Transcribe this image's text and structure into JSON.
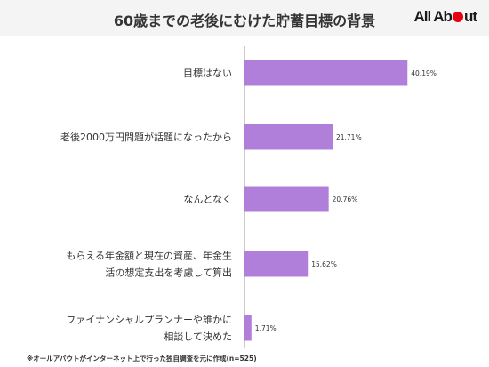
{
  "header": {
    "title": "60歳までの老後にむけた貯蓄目標の背景",
    "logo_text_a": "All Ab",
    "logo_text_b": "ut"
  },
  "chart_data": {
    "type": "bar",
    "orientation": "horizontal",
    "categories": [
      [
        "目標はない"
      ],
      [
        "老後2000万円問題が話題になったから"
      ],
      [
        "なんとなく"
      ],
      [
        "もらえる年金額と現在の資産、年金生",
        "活の想定支出を考慮して算出"
      ],
      [
        "ファイナンシャルプランナーや誰かに",
        "相談して決めた"
      ]
    ],
    "values": [
      40.19,
      21.71,
      20.76,
      15.62,
      1.71
    ],
    "value_labels": [
      "40.19%",
      "21.71%",
      "20.76%",
      "15.62%",
      "1.71%"
    ],
    "unit": "%",
    "bar_color": "#b07fd9",
    "axis_color": "#999999",
    "grid": false,
    "legend": "none"
  },
  "footnote": "※オールアバウトがインターネット上で行った独自調査を元に作成(n=525)"
}
